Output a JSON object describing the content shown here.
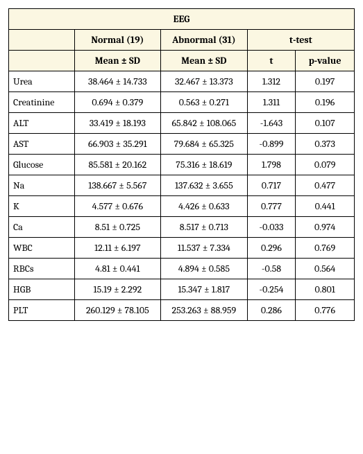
{
  "table": {
    "title": "EEG",
    "group_normal": "Normal (19)",
    "group_abnormal": "Abnormal (31)",
    "group_ttest": "t-test",
    "sub_mean_sd_1": "Mean ± SD",
    "sub_mean_sd_2": "Mean ± SD",
    "sub_t": "t",
    "sub_p": "p-value",
    "header_bg": "#fbf7e2",
    "border_color": "#000000",
    "font_family": "Cambria/Georgia serif",
    "font_size_pt": 11,
    "rows": [
      {
        "label": "Urea",
        "normal": "38.464 ± 14.733",
        "abnormal": "32.467 ± 13.373",
        "t": "1.312",
        "p": "0.197"
      },
      {
        "label": "Creatinine",
        "normal": "0.694 ± 0.379",
        "abnormal": "0.563 ± 0.271",
        "t": "1.311",
        "p": "0.196"
      },
      {
        "label": "ALT",
        "normal": "33.419 ± 18.193",
        "abnormal": "65.842 ± 108.065",
        "t": "-1.643",
        "p": "0.107"
      },
      {
        "label": "AST",
        "normal": "66.903 ± 35.291",
        "abnormal": "79.684 ± 65.325",
        "t": "-0.899",
        "p": "0.373"
      },
      {
        "label": "Glucose",
        "normal": "85.581 ± 20.162",
        "abnormal": "75.316 ± 18.619",
        "t": "1.798",
        "p": "0.079"
      },
      {
        "label": "Na",
        "normal": "138.667 ± 5.567",
        "abnormal": "137.632 ± 3.655",
        "t": "0.717",
        "p": "0.477"
      },
      {
        "label": "K",
        "normal": "4.577 ± 0.676",
        "abnormal": "4.426 ± 0.633",
        "t": "0.777",
        "p": "0.441"
      },
      {
        "label": "Ca",
        "normal": "8.51 ± 0.725",
        "abnormal": "8.517 ± 0.713",
        "t": "-0.033",
        "p": "0.974"
      },
      {
        "label": "WBC",
        "normal": "12.11 ± 6.197",
        "abnormal": "11.537 ± 7.334",
        "t": "0.296",
        "p": "0.769"
      },
      {
        "label": "RBCs",
        "normal": "4.81 ± 0.441",
        "abnormal": "4.894 ± 0.585",
        "t": "-0.58",
        "p": "0.564"
      },
      {
        "label": "HGB",
        "normal": "15.19 ± 2.292",
        "abnormal": "15.347 ± 1.817",
        "t": "-0.254",
        "p": "0.801"
      },
      {
        "label": "PLT",
        "normal": "260.129 ± 78.105",
        "abnormal": "253.263 ± 88.959",
        "t": "0.286",
        "p": "0.776"
      }
    ]
  }
}
